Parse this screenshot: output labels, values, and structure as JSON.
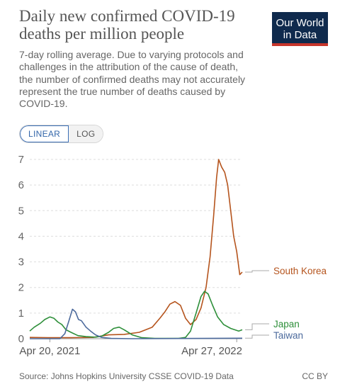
{
  "header": {
    "title": "Daily new confirmed COVID-19 deaths per million people",
    "subtitle": "7-day rolling average. Due to varying protocols and challenges in the attribution of the cause of death, the number of confirmed deaths may not accurately represent the true number of deaths caused by COVID-19."
  },
  "logo": {
    "line1": "Our World",
    "line2": "in Data"
  },
  "toggle": {
    "linear_label": "LINEAR",
    "log_label": "LOG",
    "selected": "LINEAR"
  },
  "footer": {
    "source": "Source: Johns Hopkins University CSSE COVID-19 Data",
    "license": "CC BY"
  },
  "chart_data": {
    "type": "line",
    "title": "Daily new confirmed COVID-19 deaths per million people",
    "xlabel": "",
    "ylabel": "",
    "ylim": [
      0,
      7
    ],
    "yticks": [
      0,
      1,
      2,
      3,
      4,
      5,
      6,
      7
    ],
    "x_range": [
      "2021-03-11",
      "2022-05-08"
    ],
    "x_tick_labels": [
      {
        "date": "2021-04-20",
        "label": "Apr 20, 2021"
      },
      {
        "date": "2022-04-27",
        "label": "Apr 27, 2022"
      }
    ],
    "grid": "horizontal",
    "legend": "right, labels at line ends",
    "series": [
      {
        "name": "South Korea",
        "color": "#b5541d",
        "points": [
          [
            "2021-03-11",
            0.05
          ],
          [
            "2021-04-15",
            0.04
          ],
          [
            "2021-06-01",
            0.04
          ],
          [
            "2021-07-15",
            0.05
          ],
          [
            "2021-08-15",
            0.15
          ],
          [
            "2021-09-15",
            0.17
          ],
          [
            "2021-10-15",
            0.25
          ],
          [
            "2021-11-10",
            0.45
          ],
          [
            "2021-11-25",
            0.8
          ],
          [
            "2021-12-05",
            1.05
          ],
          [
            "2021-12-15",
            1.35
          ],
          [
            "2021-12-25",
            1.45
          ],
          [
            "2022-01-05",
            1.3
          ],
          [
            "2022-01-15",
            0.8
          ],
          [
            "2022-01-25",
            0.55
          ],
          [
            "2022-02-05",
            0.75
          ],
          [
            "2022-02-15",
            1.2
          ],
          [
            "2022-02-25",
            2.0
          ],
          [
            "2022-03-05",
            3.2
          ],
          [
            "2022-03-12",
            4.8
          ],
          [
            "2022-03-18",
            6.3
          ],
          [
            "2022-03-22",
            7.0
          ],
          [
            "2022-03-28",
            6.7
          ],
          [
            "2022-04-03",
            6.5
          ],
          [
            "2022-04-09",
            6.0
          ],
          [
            "2022-04-15",
            5.0
          ],
          [
            "2022-04-21",
            4.0
          ],
          [
            "2022-04-27",
            3.4
          ],
          [
            "2022-05-03",
            2.5
          ],
          [
            "2022-05-08",
            2.6
          ]
        ]
      },
      {
        "name": "Japan",
        "color": "#2e8f3a",
        "points": [
          [
            "2021-03-11",
            0.3
          ],
          [
            "2021-03-20",
            0.45
          ],
          [
            "2021-04-01",
            0.6
          ],
          [
            "2021-04-10",
            0.75
          ],
          [
            "2021-04-20",
            0.85
          ],
          [
            "2021-04-28",
            0.8
          ],
          [
            "2021-05-06",
            0.65
          ],
          [
            "2021-05-14",
            0.55
          ],
          [
            "2021-05-22",
            0.35
          ],
          [
            "2021-06-01",
            0.25
          ],
          [
            "2021-06-15",
            0.12
          ],
          [
            "2021-07-01",
            0.08
          ],
          [
            "2021-07-20",
            0.06
          ],
          [
            "2021-08-01",
            0.1
          ],
          [
            "2021-08-15",
            0.25
          ],
          [
            "2021-08-25",
            0.4
          ],
          [
            "2021-09-05",
            0.45
          ],
          [
            "2021-09-15",
            0.35
          ],
          [
            "2021-10-01",
            0.15
          ],
          [
            "2021-10-20",
            0.04
          ],
          [
            "2021-11-15",
            0.01
          ],
          [
            "2021-12-15",
            0.01
          ],
          [
            "2022-01-01",
            0.01
          ],
          [
            "2022-01-15",
            0.05
          ],
          [
            "2022-01-25",
            0.3
          ],
          [
            "2022-02-05",
            1.0
          ],
          [
            "2022-02-15",
            1.65
          ],
          [
            "2022-02-22",
            1.85
          ],
          [
            "2022-03-01",
            1.75
          ],
          [
            "2022-03-10",
            1.3
          ],
          [
            "2022-03-20",
            0.85
          ],
          [
            "2022-04-01",
            0.55
          ],
          [
            "2022-04-15",
            0.4
          ],
          [
            "2022-05-01",
            0.3
          ],
          [
            "2022-05-08",
            0.35
          ]
        ]
      },
      {
        "name": "Taiwan",
        "color": "#4c6a9c",
        "points": [
          [
            "2021-03-11",
            0.0
          ],
          [
            "2021-05-10",
            0.0
          ],
          [
            "2021-05-20",
            0.2
          ],
          [
            "2021-05-28",
            0.7
          ],
          [
            "2021-06-04",
            1.15
          ],
          [
            "2021-06-10",
            1.05
          ],
          [
            "2021-06-16",
            0.75
          ],
          [
            "2021-06-22",
            0.7
          ],
          [
            "2021-07-01",
            0.45
          ],
          [
            "2021-07-10",
            0.3
          ],
          [
            "2021-07-20",
            0.15
          ],
          [
            "2021-08-01",
            0.05
          ],
          [
            "2021-08-20",
            0.01
          ],
          [
            "2021-10-01",
            0.0
          ],
          [
            "2022-05-08",
            0.02
          ]
        ]
      }
    ]
  }
}
